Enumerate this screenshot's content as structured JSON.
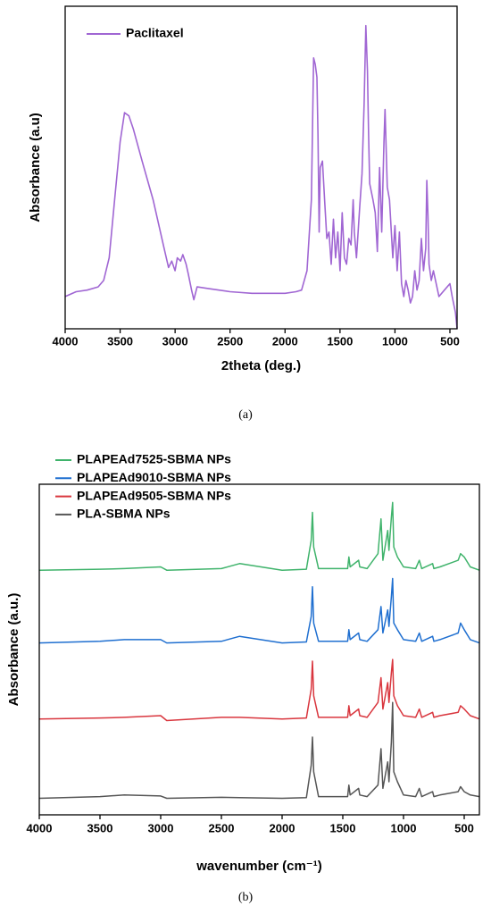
{
  "chart_data": [
    {
      "type": "line",
      "caption": "(a)",
      "xlabel": "2theta (deg.)",
      "ylabel": "Absorbance (a.u)",
      "xlim": [
        4000,
        435
      ],
      "ylim": [
        0,
        100
      ],
      "xticks": [
        4000,
        3500,
        3000,
        2500,
        2000,
        1500,
        1000,
        500
      ],
      "legend": "top-left",
      "series": [
        {
          "name": "Paclitaxel",
          "color": "#a066d3",
          "x": [
            4000,
            3900,
            3800,
            3700,
            3650,
            3600,
            3550,
            3500,
            3460,
            3420,
            3380,
            3300,
            3200,
            3100,
            3060,
            3030,
            3000,
            2980,
            2950,
            2930,
            2900,
            2880,
            2850,
            2830,
            2800,
            2700,
            2500,
            2300,
            2100,
            2000,
            1900,
            1850,
            1800,
            1760,
            1740,
            1725,
            1710,
            1700,
            1690,
            1680,
            1660,
            1640,
            1620,
            1600,
            1580,
            1560,
            1540,
            1520,
            1500,
            1480,
            1460,
            1440,
            1420,
            1400,
            1380,
            1370,
            1350,
            1320,
            1300,
            1280,
            1265,
            1250,
            1240,
            1230,
            1200,
            1180,
            1160,
            1140,
            1120,
            1100,
            1090,
            1070,
            1050,
            1020,
            1000,
            980,
            960,
            940,
            920,
            900,
            880,
            860,
            840,
            820,
            800,
            780,
            760,
            740,
            720,
            710,
            700,
            690,
            670,
            650,
            600,
            550,
            500,
            480,
            450,
            435
          ],
          "values": [
            10,
            11.5,
            12,
            13,
            15,
            22,
            40,
            58,
            67,
            66,
            62,
            52,
            40,
            25,
            19,
            21,
            18,
            22,
            21,
            23,
            20,
            17,
            12,
            9,
            13,
            12.5,
            11.5,
            11,
            11,
            11,
            11.5,
            12,
            18,
            40,
            84,
            82,
            78,
            60,
            30,
            50,
            52,
            40,
            28,
            30,
            20,
            34,
            22,
            30,
            18,
            36,
            22,
            20,
            28,
            26,
            40,
            30,
            22,
            38,
            48,
            70,
            94,
            80,
            60,
            45,
            40,
            36,
            24,
            50,
            30,
            58,
            68,
            44,
            40,
            22,
            32,
            18,
            30,
            14,
            10,
            15,
            12,
            8,
            10,
            18,
            12,
            15,
            28,
            18,
            25,
            46,
            35,
            20,
            15,
            18,
            10,
            12,
            14,
            10,
            5,
            0
          ]
        }
      ]
    },
    {
      "type": "line",
      "caption": "(b)",
      "xlabel": "wavenumber (cm⁻¹)",
      "ylabel": "Absorbance (a.u.)",
      "xlim": [
        4000,
        375
      ],
      "ylim": [
        0,
        100
      ],
      "xticks": [
        4000,
        3500,
        3000,
        2500,
        2000,
        1500,
        1000,
        500
      ],
      "legend": "top-left",
      "x": [
        4000,
        3500,
        3300,
        3000,
        2950,
        2500,
        2350,
        2000,
        1800,
        1760,
        1750,
        1740,
        1700,
        1460,
        1450,
        1440,
        1370,
        1360,
        1300,
        1210,
        1185,
        1170,
        1130,
        1120,
        1100,
        1090,
        1080,
        1050,
        1000,
        900,
        870,
        850,
        760,
        750,
        700,
        550,
        530,
        500,
        450,
        375
      ],
      "series": [
        {
          "name": "PLAPEAd7525-SBMA NPs",
          "color": "#3fb36b",
          "values": [
            74,
            74.3,
            74.5,
            75,
            74,
            74.5,
            76,
            74,
            74.3,
            83,
            91.5,
            81,
            74.5,
            74.5,
            78,
            75,
            77,
            75,
            74.5,
            79,
            89.5,
            77,
            86,
            80,
            90,
            94.5,
            81,
            78,
            75,
            74.5,
            77,
            74.5,
            76,
            74.5,
            75,
            77,
            79,
            78,
            75,
            74
          ]
        },
        {
          "name": "PLAPEAd9010-SBMA NPs",
          "color": "#1f6fd0",
          "values": [
            52,
            52.5,
            53,
            53,
            52,
            52.5,
            54,
            52,
            52.3,
            60,
            69,
            58,
            52.5,
            52.5,
            56,
            53,
            55,
            53,
            52.5,
            56,
            63,
            55,
            62,
            57,
            66,
            71.5,
            58,
            56,
            53,
            52.5,
            55,
            52.5,
            54,
            52.5,
            53,
            55,
            58,
            56,
            53,
            52
          ]
        },
        {
          "name": "PLAPEAd9505-SBMA NPs",
          "color": "#d9363e",
          "values": [
            29,
            29.3,
            29.5,
            30,
            28.5,
            29.5,
            29.5,
            29,
            29.3,
            38,
            46.5,
            36,
            29.5,
            29.5,
            33,
            30,
            32,
            30,
            29.5,
            34,
            41.5,
            32,
            40,
            34,
            43,
            47,
            36,
            33,
            30,
            29.5,
            32,
            29.5,
            31,
            29.5,
            30,
            31,
            33,
            32,
            30,
            29
          ]
        },
        {
          "name": "PLA-SBMA NPs",
          "color": "#555555",
          "values": [
            5,
            5.5,
            6,
            5.7,
            5,
            5.3,
            5.2,
            5,
            5.2,
            15,
            23.5,
            13,
            5.5,
            5.5,
            9,
            6,
            8,
            6,
            5.5,
            9,
            20,
            8,
            16,
            10,
            22,
            34,
            13,
            10,
            6,
            5.5,
            8,
            5.5,
            7,
            5.5,
            6,
            7,
            8.5,
            7,
            6,
            5.5
          ]
        }
      ]
    }
  ]
}
